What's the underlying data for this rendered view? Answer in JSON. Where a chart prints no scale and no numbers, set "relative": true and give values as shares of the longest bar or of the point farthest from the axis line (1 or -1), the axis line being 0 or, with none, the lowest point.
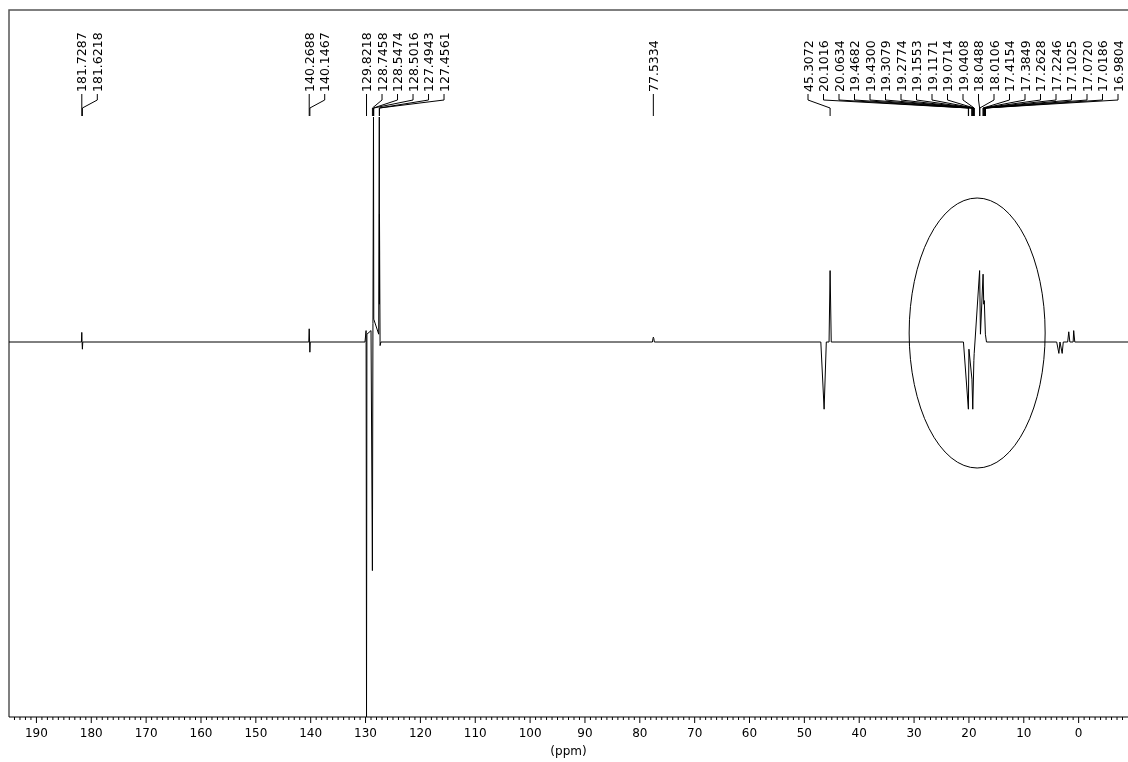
{
  "chart_data": {
    "type": "line",
    "relative": true,
    "xlabel": "(ppm)",
    "xlim": [
      195,
      -9
    ],
    "xticks": [
      190,
      180,
      170,
      160,
      150,
      140,
      130,
      120,
      110,
      100,
      90,
      80,
      70,
      60,
      50,
      40,
      30,
      20,
      10,
      0,
      {
        "value": 194,
        "label": null
      },
      {
        "value": 193,
        "label": null
      },
      {
        "value": 192,
        "label": null
      },
      {
        "value": 191,
        "label": null
      },
      {
        "value": 189,
        "label": null
      },
      {
        "value": 188,
        "label": null
      },
      {
        "value": 187,
        "label": null
      },
      {
        "value": 186,
        "label": null
      },
      {
        "value": 185,
        "label": null
      },
      {
        "value": 184,
        "label": null
      },
      {
        "value": 183,
        "label": null
      },
      {
        "value": 182,
        "label": null
      },
      {
        "value": 181,
        "label": null
      },
      {
        "value": 179,
        "label": null
      },
      {
        "value": 178,
        "label": null
      },
      {
        "value": 177,
        "label": null
      },
      {
        "value": 176,
        "label": null
      },
      {
        "value": 175,
        "label": null
      },
      {
        "value": 174,
        "label": null
      },
      {
        "value": 173,
        "label": null
      },
      {
        "value": 172,
        "label": null
      },
      {
        "value": 171,
        "label": null
      },
      {
        "value": 169,
        "label": null
      },
      {
        "value": 168,
        "label": null
      },
      {
        "value": 167,
        "label": null
      },
      {
        "value": 166,
        "label": null
      },
      {
        "value": 165,
        "label": null
      },
      {
        "value": 164,
        "label": null
      },
      {
        "value": 163,
        "label": null
      },
      {
        "value": 162,
        "label": null
      },
      {
        "value": 161,
        "label": null
      },
      {
        "value": 159,
        "label": null
      },
      {
        "value": 158,
        "label": null
      },
      {
        "value": 157,
        "label": null
      },
      {
        "value": 156,
        "label": null
      },
      {
        "value": 155,
        "label": null
      },
      {
        "value": 154,
        "label": null
      },
      {
        "value": 153,
        "label": null
      },
      {
        "value": 152,
        "label": null
      },
      {
        "value": 151,
        "label": null
      },
      {
        "value": 149,
        "label": null
      },
      {
        "value": 148,
        "label": null
      },
      {
        "value": 147,
        "label": null
      },
      {
        "value": 146,
        "label": null
      },
      {
        "value": 145,
        "label": null
      },
      {
        "value": 144,
        "label": null
      },
      {
        "value": 143,
        "label": null
      },
      {
        "value": 142,
        "label": null
      },
      {
        "value": 141,
        "label": null
      },
      {
        "value": 139,
        "label": null
      },
      {
        "value": 138,
        "label": null
      },
      {
        "value": 137,
        "label": null
      },
      {
        "value": 136,
        "label": null
      },
      {
        "value": 135,
        "label": null
      },
      {
        "value": 134,
        "label": null
      },
      {
        "value": 133,
        "label": null
      },
      {
        "value": 132,
        "label": null
      },
      {
        "value": 131,
        "label": null
      },
      {
        "value": 129,
        "label": null
      },
      {
        "value": 128,
        "label": null
      },
      {
        "value": 127,
        "label": null
      },
      {
        "value": 126,
        "label": null
      },
      {
        "value": 125,
        "label": null
      },
      {
        "value": 124,
        "label": null
      },
      {
        "value": 123,
        "label": null
      },
      {
        "value": 122,
        "label": null
      },
      {
        "value": 121,
        "label": null
      },
      {
        "value": 119,
        "label": null
      },
      {
        "value": 118,
        "label": null
      },
      {
        "value": 117,
        "label": null
      },
      {
        "value": 116,
        "label": null
      },
      {
        "value": 115,
        "label": null
      },
      {
        "value": 114,
        "label": null
      },
      {
        "value": 113,
        "label": null
      },
      {
        "value": 112,
        "label": null
      },
      {
        "value": 111,
        "label": null
      },
      {
        "value": 109,
        "label": null
      },
      {
        "value": 108,
        "label": null
      },
      {
        "value": 107,
        "label": null
      },
      {
        "value": 106,
        "label": null
      },
      {
        "value": 105,
        "label": null
      },
      {
        "value": 104,
        "label": null
      },
      {
        "value": 103,
        "label": null
      },
      {
        "value": 102,
        "label": null
      },
      {
        "value": 101,
        "label": null
      },
      {
        "value": 99,
        "label": null
      },
      {
        "value": 98,
        "label": null
      },
      {
        "value": 97,
        "label": null
      },
      {
        "value": 96,
        "label": null
      },
      {
        "value": 95,
        "label": null
      },
      {
        "value": 94,
        "label": null
      },
      {
        "value": 93,
        "label": null
      },
      {
        "value": 92,
        "label": null
      },
      {
        "value": 91,
        "label": null
      },
      {
        "value": 89,
        "label": null
      },
      {
        "value": 88,
        "label": null
      },
      {
        "value": 87,
        "label": null
      },
      {
        "value": 86,
        "label": null
      },
      {
        "value": 85,
        "label": null
      },
      {
        "value": 84,
        "label": null
      },
      {
        "value": 83,
        "label": null
      },
      {
        "value": 82,
        "label": null
      },
      {
        "value": 81,
        "label": null
      },
      {
        "value": 79,
        "label": null
      },
      {
        "value": 78,
        "label": null
      },
      {
        "value": 77,
        "label": null
      },
      {
        "value": 76,
        "label": null
      },
      {
        "value": 75,
        "label": null
      },
      {
        "value": 74,
        "label": null
      },
      {
        "value": 73,
        "label": null
      },
      {
        "value": 72,
        "label": null
      },
      {
        "value": 71,
        "label": null
      },
      {
        "value": 69,
        "label": null
      },
      {
        "value": 68,
        "label": null
      },
      {
        "value": 67,
        "label": null
      },
      {
        "value": 66,
        "label": null
      },
      {
        "value": 65,
        "label": null
      },
      {
        "value": 64,
        "label": null
      },
      {
        "value": 63,
        "label": null
      },
      {
        "value": 62,
        "label": null
      },
      {
        "value": 61,
        "label": null
      },
      {
        "value": 59,
        "label": null
      },
      {
        "value": 58,
        "label": null
      },
      {
        "value": 57,
        "label": null
      },
      {
        "value": 56,
        "label": null
      },
      {
        "value": 55,
        "label": null
      },
      {
        "value": 54,
        "label": null
      },
      {
        "value": 53,
        "label": null
      },
      {
        "value": 52,
        "label": null
      },
      {
        "value": 51,
        "label": null
      },
      {
        "value": 49,
        "label": null
      },
      {
        "value": 48,
        "label": null
      },
      {
        "value": 47,
        "label": null
      },
      {
        "value": 46,
        "label": null
      },
      {
        "value": 45,
        "label": null
      },
      {
        "value": 44,
        "label": null
      },
      {
        "value": 43,
        "label": null
      },
      {
        "value": 42,
        "label": null
      },
      {
        "value": 41,
        "label": null
      },
      {
        "value": 39,
        "label": null
      },
      {
        "value": 38,
        "label": null
      },
      {
        "value": 37,
        "label": null
      },
      {
        "value": 36,
        "label": null
      },
      {
        "value": 35,
        "label": null
      },
      {
        "value": 34,
        "label": null
      },
      {
        "value": 33,
        "label": null
      },
      {
        "value": 32,
        "label": null
      },
      {
        "value": 31,
        "label": null
      },
      {
        "value": 29,
        "label": null
      },
      {
        "value": 28,
        "label": null
      },
      {
        "value": 27,
        "label": null
      },
      {
        "value": 26,
        "label": null
      },
      {
        "value": 25,
        "label": null
      },
      {
        "value": 24,
        "label": null
      },
      {
        "value": 23,
        "label": null
      },
      {
        "value": 22,
        "label": null
      },
      {
        "value": 21,
        "label": null
      },
      {
        "value": 19,
        "label": null
      },
      {
        "value": 18,
        "label": null
      },
      {
        "value": 17,
        "label": null
      },
      {
        "value": 16,
        "label": null
      },
      {
        "value": 15,
        "label": null
      },
      {
        "value": 14,
        "label": null
      },
      {
        "value": 13,
        "label": null
      },
      {
        "value": 12,
        "label": null
      },
      {
        "value": 11,
        "label": null
      },
      {
        "value": 9,
        "label": null
      },
      {
        "value": 8,
        "label": null
      },
      {
        "value": 7,
        "label": null
      },
      {
        "value": 6,
        "label": null
      },
      {
        "value": 5,
        "label": null
      },
      {
        "value": 4,
        "label": null
      },
      {
        "value": 3,
        "label": null
      },
      {
        "value": 2,
        "label": null
      },
      {
        "value": 1,
        "label": null
      },
      {
        "value": -1,
        "label": null
      },
      {
        "value": -2,
        "label": null
      },
      {
        "value": -3,
        "label": null
      },
      {
        "value": -4,
        "label": null
      },
      {
        "value": -5,
        "label": null
      },
      {
        "value": -6,
        "label": null
      },
      {
        "value": -7,
        "label": null
      },
      {
        "value": -8,
        "label": null
      }
    ],
    "x": [
      195,
      181.8,
      181.73,
      181.68,
      181.62,
      181.55,
      140.35,
      140.27,
      140.2,
      140.15,
      140.08,
      130.1,
      129.9,
      129.82,
      129.75,
      129.0,
      128.75,
      128.65,
      128.55,
      128.5,
      127.6,
      127.49,
      127.47,
      127.46,
      127.35,
      127.2,
      77.7,
      77.6,
      77.53,
      77.45,
      77.35,
      47.0,
      46.4,
      46.0,
      45.5,
      45.31,
      45.1,
      21.0,
      20.1,
      20.0,
      19.45,
      19.3,
      19.1,
      19.04,
      18.9,
      18.05,
      17.9,
      17.42,
      17.3,
      17.2,
      17.0,
      16.8,
      4.0,
      3.6,
      3.4,
      3.0,
      2.8,
      2.0,
      1.8,
      1.6,
      1.0,
      0.9,
      0.7,
      -9
    ],
    "series": [
      {
        "color": "#000000",
        "values": [
          0.625,
          0.625,
          0.641,
          0.625,
          0.613,
          0.625,
          0.625,
          0.647,
          0.625,
          0.608,
          0.625,
          0.625,
          0.644,
          0,
          0.638,
          0.644,
          0.244,
          0.656,
          1,
          0.663,
          0.638,
          1,
          0.688,
          0.838,
          0.619,
          0.625,
          0.625,
          0.631,
          0.633,
          0.631,
          0.625,
          0.625,
          0.513,
          0.625,
          0.625,
          0.744,
          0.625,
          0.625,
          0.513,
          0.613,
          0.563,
          0.513,
          0.594,
          0.606,
          0.625,
          0.744,
          0.638,
          0.738,
          0.688,
          0.694,
          0.638,
          0.625,
          0.625,
          0.606,
          0.625,
          0.606,
          0.625,
          0.625,
          0.642,
          0.625,
          0.625,
          0.644,
          0.625,
          0.625
        ]
      }
    ],
    "annotations": [
      {
        "text": "181.7287",
        "x": 181.7287
      },
      {
        "text": "181.6218",
        "x": 181.6218
      },
      {
        "text": "140.2688",
        "x": 140.2688
      },
      {
        "text": "140.1467",
        "x": 140.1467
      },
      {
        "text": "129.8218",
        "x": 129.8218
      },
      {
        "text": "128.7458",
        "x": 128.7458
      },
      {
        "text": "128.5474",
        "x": 128.5474
      },
      {
        "text": "128.5016",
        "x": 128.5016
      },
      {
        "text": "127.4943",
        "x": 127.4943
      },
      {
        "text": "127.4561",
        "x": 127.4561
      },
      {
        "text": "77.5334",
        "x": 77.5334
      },
      {
        "text": "45.3072",
        "x": 45.3072
      },
      {
        "text": "20.1016",
        "x": 20.1016
      },
      {
        "text": "20.0634",
        "x": 20.0634
      },
      {
        "text": "19.4682",
        "x": 19.4682
      },
      {
        "text": "19.4300",
        "x": 19.43
      },
      {
        "text": "19.3079",
        "x": 19.3079
      },
      {
        "text": "19.2774",
        "x": 19.2774
      },
      {
        "text": "19.1553",
        "x": 19.1553
      },
      {
        "text": "19.1171",
        "x": 19.1171
      },
      {
        "text": "19.0714",
        "x": 19.0714
      },
      {
        "text": "19.0408",
        "x": 19.0408
      },
      {
        "text": "18.0488",
        "x": 18.0488
      },
      {
        "text": "18.0106",
        "x": 18.0106
      },
      {
        "text": "17.4154",
        "x": 17.4154
      },
      {
        "text": "17.3849",
        "x": 17.3849
      },
      {
        "text": "17.2628",
        "x": 17.2628
      },
      {
        "text": "17.2246",
        "x": 17.2246
      },
      {
        "text": "17.1025",
        "x": 17.1025
      },
      {
        "text": "17.0720",
        "x": 17.072
      },
      {
        "text": "17.0186",
        "x": 17.0186
      },
      {
        "text": "16.9804",
        "x": 16.9804
      }
    ]
  }
}
